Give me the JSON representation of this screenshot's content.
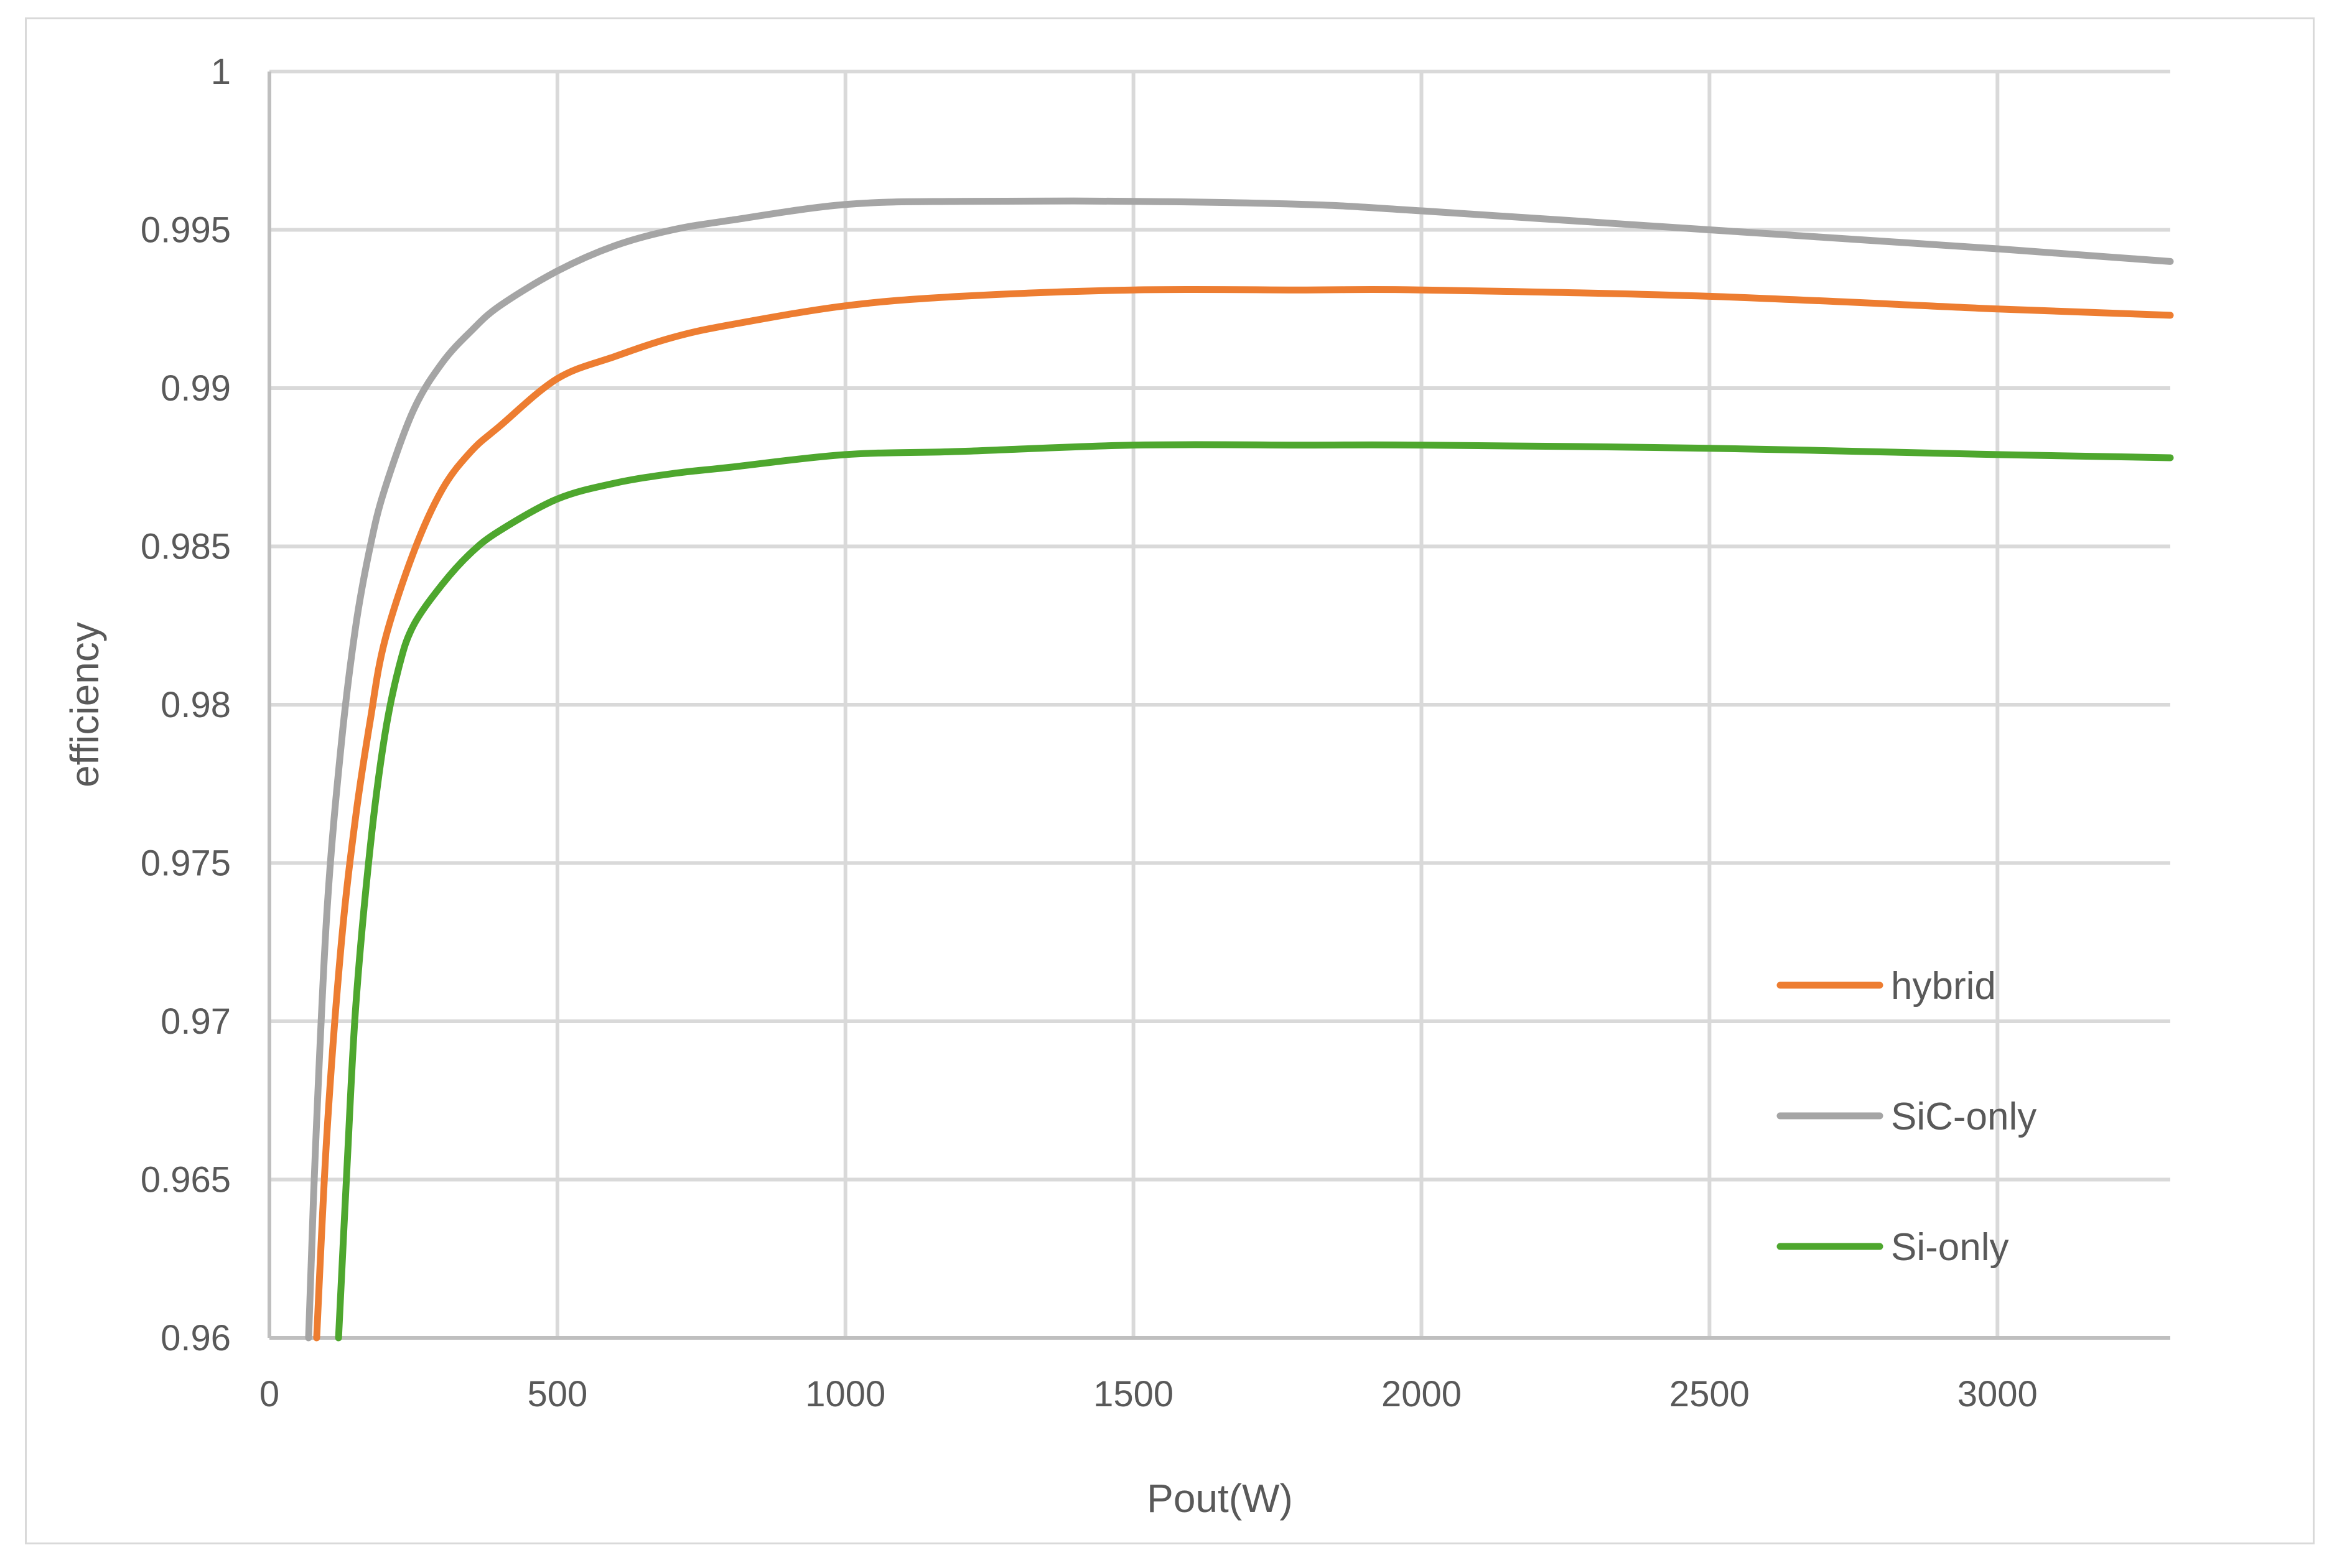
{
  "chart_data": {
    "type": "line",
    "title": "",
    "xlabel": "Pout(W)",
    "ylabel": "efficiency",
    "xlim": [
      0,
      3300
    ],
    "ylim": [
      0.96,
      1
    ],
    "xticks": [
      0,
      500,
      1000,
      1500,
      2000,
      2500,
      3000
    ],
    "yticks": [
      0.96,
      0.965,
      0.97,
      0.975,
      0.98,
      0.985,
      0.99,
      0.995,
      1
    ],
    "xtick_labels": [
      "0",
      "500",
      "1000",
      "1500",
      "2000",
      "2500",
      "3000"
    ],
    "ytick_labels": [
      "0.96",
      "0.965",
      "0.97",
      "0.975",
      "0.98",
      "0.985",
      "0.99",
      "0.995",
      "1"
    ],
    "grid": true,
    "legend_position": "bottom-right",
    "series": [
      {
        "name": "hybrid",
        "color": "#ED7D31",
        "x": [
          82,
          100,
          125,
          150,
          175,
          200,
          250,
          300,
          350,
          400,
          500,
          600,
          700,
          800,
          1000,
          1200,
          1500,
          1800,
          2000,
          2500,
          3000,
          3300
        ],
        "y": [
          0.96,
          0.9665,
          0.9725,
          0.9765,
          0.9795,
          0.982,
          0.9848,
          0.9868,
          0.988,
          0.9888,
          0.9903,
          0.991,
          0.9916,
          0.992,
          0.9926,
          0.9929,
          0.9931,
          0.9931,
          0.9931,
          0.9929,
          0.9925,
          0.9923
        ]
      },
      {
        "name": "SiC-only",
        "color": "#A5A5A5",
        "x": [
          68,
          80,
          100,
          125,
          150,
          175,
          200,
          250,
          300,
          350,
          400,
          500,
          600,
          700,
          800,
          1000,
          1200,
          1500,
          1800,
          2000,
          2500,
          3000,
          3300
        ],
        "y": [
          0.96,
          0.966,
          0.9735,
          0.9788,
          0.9825,
          0.985,
          0.9868,
          0.9893,
          0.9908,
          0.9918,
          0.9926,
          0.9937,
          0.9945,
          0.995,
          0.9953,
          0.9958,
          0.9959,
          0.9959,
          0.9958,
          0.9956,
          0.995,
          0.9944,
          0.994
        ]
      },
      {
        "name": "Si-only",
        "color": "#4EA72E",
        "x": [
          120,
          135,
          150,
          175,
          200,
          225,
          250,
          300,
          350,
          400,
          500,
          600,
          700,
          800,
          1000,
          1200,
          1500,
          1800,
          2000,
          2500,
          3000,
          3300
        ],
        "y": [
          0.96,
          0.9655,
          0.9705,
          0.9755,
          0.979,
          0.9812,
          0.9825,
          0.9838,
          0.9848,
          0.9855,
          0.9865,
          0.987,
          0.9873,
          0.9875,
          0.9879,
          0.988,
          0.9882,
          0.9882,
          0.9882,
          0.9881,
          0.9879,
          0.9878
        ]
      }
    ]
  }
}
